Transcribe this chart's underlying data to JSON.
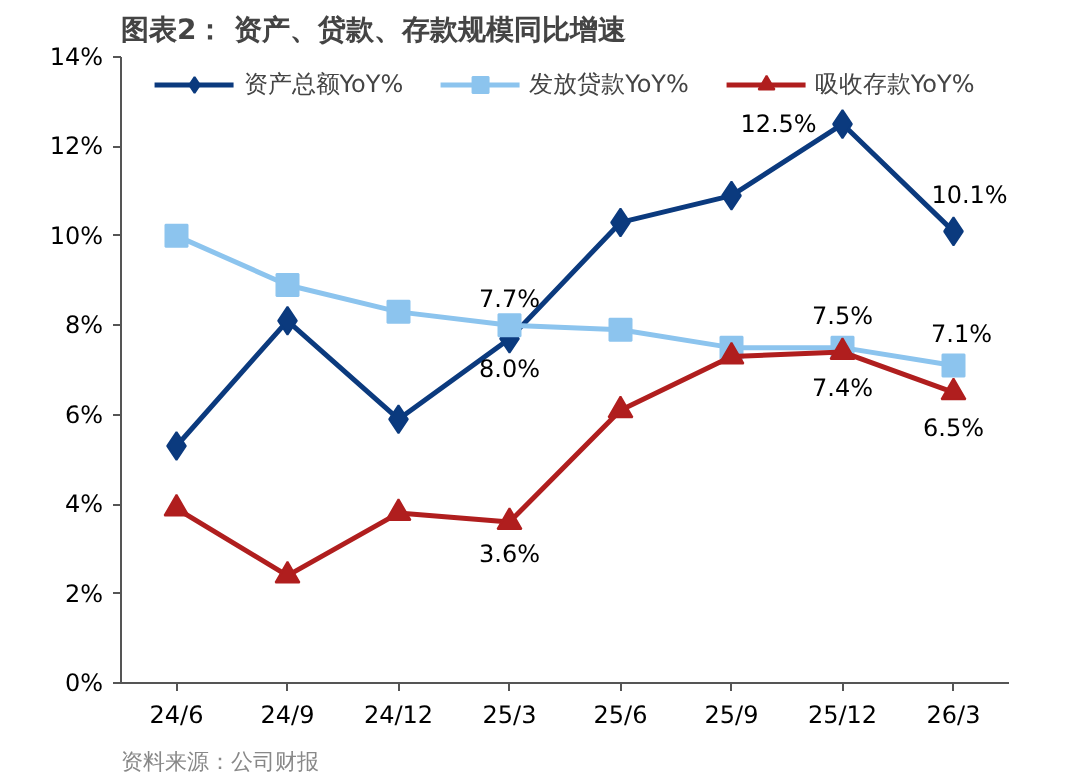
{
  "chart_data": {
    "type": "line",
    "title": "图表2：  资产、贷款、存款规模同比增速",
    "categories": [
      "24/6",
      "24/9",
      "24/12",
      "25/3",
      "25/6",
      "25/9",
      "25/12",
      "26/3"
    ],
    "series": [
      {
        "name": "资产总额YoY%",
        "color": "#0b3a7e",
        "marker": "diamond",
        "values": [
          5.3,
          8.1,
          5.9,
          7.7,
          10.3,
          10.9,
          12.5,
          10.1
        ],
        "value_labels": [
          null,
          null,
          null,
          "7.7%",
          null,
          null,
          "12.5%",
          "10.1%"
        ]
      },
      {
        "name": "发放贷款YoY%",
        "color": "#8cc4ee",
        "marker": "square",
        "values": [
          10.0,
          8.9,
          8.3,
          8.0,
          7.9,
          7.5,
          7.5,
          7.1
        ],
        "value_labels": [
          null,
          null,
          null,
          "8.0%",
          null,
          null,
          "7.5%",
          "7.1%"
        ]
      },
      {
        "name": "吸收存款YoY%",
        "color": "#b01e1e",
        "marker": "triangle",
        "values": [
          3.9,
          2.4,
          3.8,
          3.6,
          6.1,
          7.3,
          7.4,
          6.5
        ],
        "value_labels": [
          null,
          null,
          null,
          "3.6%",
          null,
          null,
          "7.4%",
          "6.5%"
        ]
      }
    ],
    "ylim": [
      0,
      14
    ],
    "yticks": [
      {
        "value": 0,
        "label": "0%"
      },
      {
        "value": 2,
        "label": "2%"
      },
      {
        "value": 4,
        "label": "4%"
      },
      {
        "value": 6,
        "label": "6%"
      },
      {
        "value": 8,
        "label": "8%"
      },
      {
        "value": 10,
        "label": "10%"
      },
      {
        "value": 12,
        "label": "12%"
      },
      {
        "value": 14,
        "label": "14%"
      }
    ],
    "grid": false,
    "legend": "top",
    "line_style": "solid",
    "annotations": [
      "资料来源：公司财报"
    ]
  }
}
